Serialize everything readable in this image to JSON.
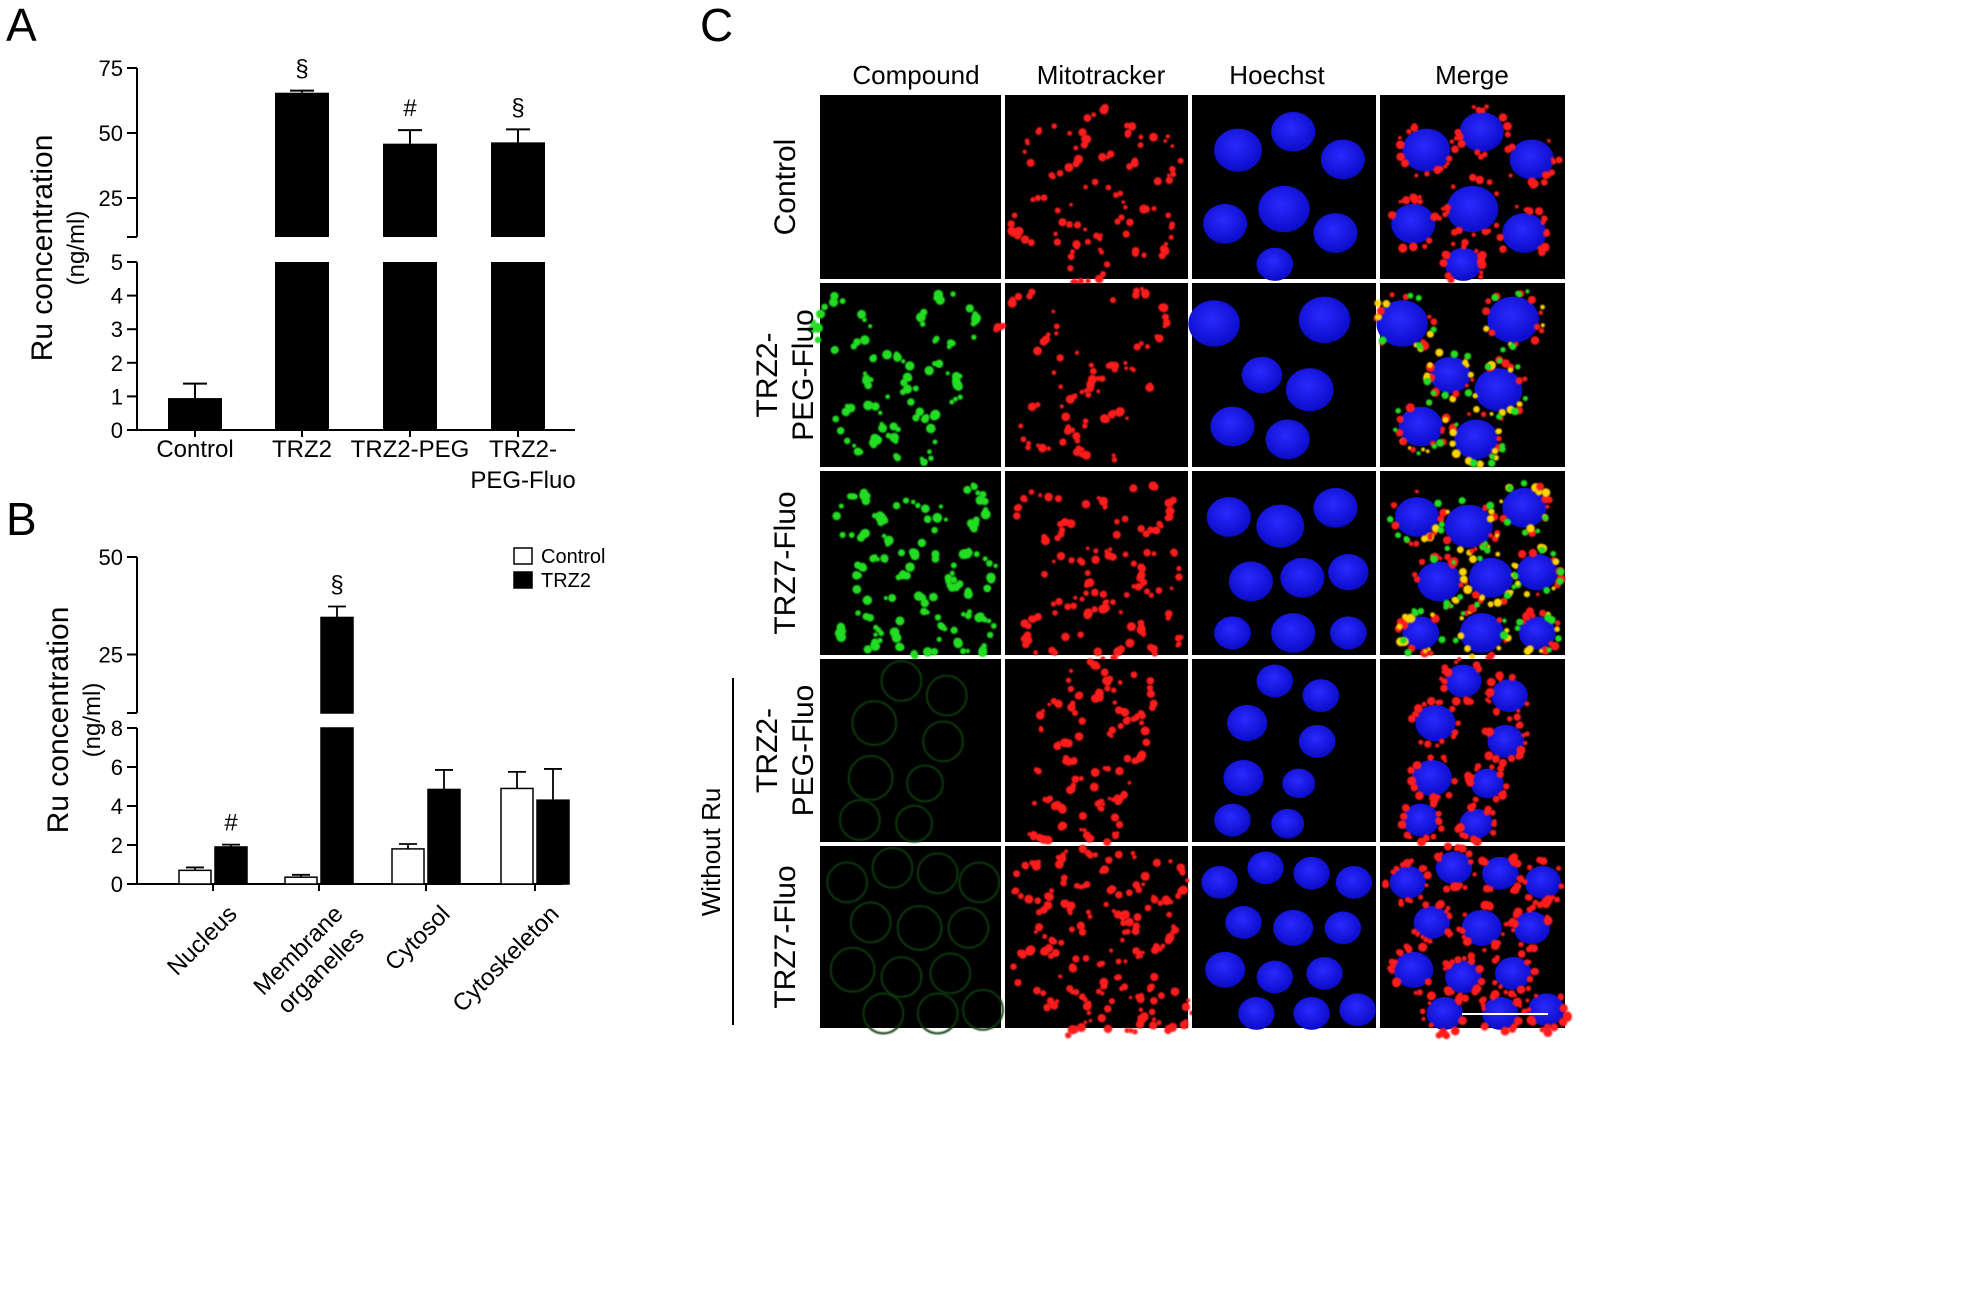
{
  "panels": {
    "a": "A",
    "b": "B",
    "c": "C"
  },
  "chart_data": [
    {
      "type": "bar",
      "panel": "A",
      "ylabel": "Ru concentration",
      "ylabel_unit": "(ng/ml)",
      "categories": [
        "Control",
        "TRZ2",
        "TRZ2-PEG",
        "TRZ2-\nPEG-Fluo"
      ],
      "category_lines": [
        [
          "Control"
        ],
        [
          "TRZ2"
        ],
        [
          "TRZ2-PEG"
        ],
        [
          "TRZ2-",
          "PEG-Fluo"
        ]
      ],
      "values": [
        0.95,
        65.5,
        45.9,
        46.4
      ],
      "errors": [
        0.43,
        0.8,
        5.2,
        5.0
      ],
      "significance": [
        "",
        "§",
        "#",
        "§"
      ],
      "y_axis_broken": true,
      "lower_ylim": [
        0,
        5
      ],
      "lower_ticks": [
        0,
        1,
        2,
        3,
        4,
        5
      ],
      "upper_ylim": [
        10,
        75
      ],
      "upper_ticks": [
        25,
        50,
        75
      ],
      "bar_color": "#000000"
    },
    {
      "type": "bar",
      "panel": "B",
      "ylabel": "Ru concentration",
      "ylabel_unit": "(ng/ml)",
      "categories": [
        "Nucleus",
        "Membrane\norganelles",
        "Cytosol",
        "Cytoskeleton"
      ],
      "category_lines": [
        [
          "Nucleus"
        ],
        [
          "Membrane",
          "organelles"
        ],
        [
          "Cytosol"
        ],
        [
          "Cytoskeleton"
        ]
      ],
      "series": [
        {
          "name": "Control",
          "values": [
            0.7,
            0.35,
            1.8,
            4.9
          ],
          "errors": [
            0.15,
            0.12,
            0.25,
            0.85
          ],
          "color": "#ffffff"
        },
        {
          "name": "TRZ2",
          "values": [
            1.9,
            34.5,
            4.85,
            4.3
          ],
          "errors": [
            0.12,
            2.8,
            1.0,
            1.6
          ],
          "color": "#000000"
        }
      ],
      "significance": [
        "#",
        "§",
        "",
        ""
      ],
      "y_axis_broken": true,
      "lower_ylim": [
        0,
        8
      ],
      "lower_ticks": [
        0,
        2,
        4,
        6,
        8
      ],
      "upper_ylim": [
        10,
        50
      ],
      "upper_ticks": [
        25,
        50
      ],
      "legend_position": "top-right"
    }
  ],
  "micrographs": {
    "columns": [
      "Compound",
      "Mitotracker",
      "Hoechst",
      "Merge"
    ],
    "rows": [
      {
        "label": [
          "Control"
        ]
      },
      {
        "label": [
          "TRZ2-",
          "PEG-Fluo"
        ]
      },
      {
        "label": [
          "TRZ7-Fluo"
        ]
      },
      {
        "label": [
          "TRZ2-",
          "PEG-Fluo"
        ]
      },
      {
        "label": [
          "TRZ7-Fluo"
        ]
      }
    ],
    "group_label": "Without Ru",
    "channel_colors": {
      "compound": "#22dd22",
      "mitotracker": "#ff1a1a",
      "hoechst": "#1a1aff",
      "merge_overlap": "#ffd400",
      "background": "#000000"
    },
    "compound_signal": [
      "none",
      "bright",
      "bright",
      "faint",
      "faint"
    ],
    "has_scale_bar": true
  }
}
